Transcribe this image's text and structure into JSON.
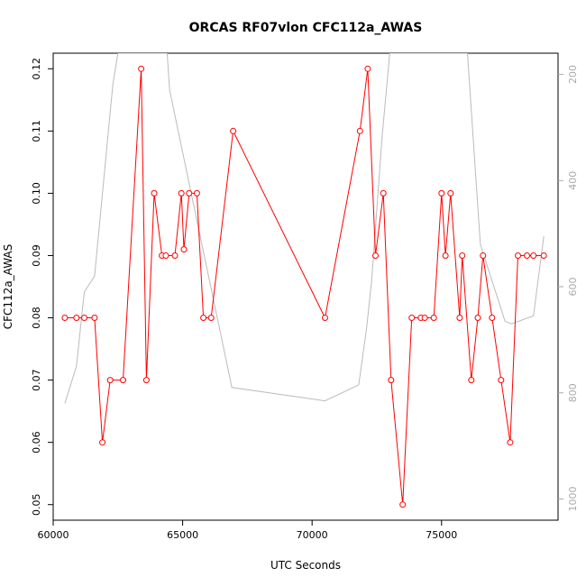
{
  "chart_data": {
    "type": "line",
    "title": "ORCAS RF07vlon CFC112a_AWAS",
    "xlabel": "UTC Seconds",
    "ylabel": "CFC112a_AWAS",
    "xlim": [
      60000,
      79500
    ],
    "ylim": [
      0.0475,
      0.1225
    ],
    "xticks": [
      60000,
      65000,
      70000,
      75000
    ],
    "yticks": [
      0.05,
      0.06,
      0.07,
      0.08,
      0.09,
      0.1,
      0.11,
      0.12
    ],
    "xtick_labels": [
      "60000",
      "65000",
      "70000",
      "75000"
    ],
    "ytick_labels": [
      "0.05",
      "0.06",
      "0.07",
      "0.08",
      "0.09",
      "0.10",
      "0.11",
      "0.12"
    ],
    "right_axis": {
      "ticks": [
        200,
        400,
        600,
        800,
        1000
      ],
      "tick_labels": [
        "200",
        "400",
        "600",
        "800",
        "1000"
      ],
      "ylim": [
        1040,
        160
      ]
    },
    "series": [
      {
        "color": "#ff0000",
        "style": "line+points",
        "x": [
          60450,
          60900,
          61200,
          61600,
          61900,
          62200,
          62700,
          63400,
          63600,
          63900,
          64200,
          64350,
          64700,
          64950,
          65050,
          65250,
          65550,
          65800,
          66100,
          66950,
          70500,
          71850,
          72150,
          72450,
          72750,
          73050,
          73500,
          73850,
          74200,
          74350,
          74700,
          75000,
          75150,
          75350,
          75700,
          75800,
          76150,
          76400,
          76600,
          76950,
          77300,
          77650,
          77950,
          78300,
          78550,
          78950
        ],
        "y": [
          0.08,
          0.08,
          0.08,
          0.08,
          0.06,
          0.07,
          0.07,
          0.12,
          0.07,
          0.1,
          0.09,
          0.09,
          0.09,
          0.1,
          0.091,
          0.1,
          0.1,
          0.08,
          0.08,
          0.11,
          0.08,
          0.11,
          0.12,
          0.09,
          0.1,
          0.07,
          0.05,
          0.08,
          0.08,
          0.08,
          0.08,
          0.1,
          0.09,
          0.1,
          0.08,
          0.09,
          0.07,
          0.08,
          0.09,
          0.08,
          0.07,
          0.06,
          0.09,
          0.09,
          0.09,
          0.09
        ]
      },
      {
        "color": "#bbbbbb",
        "axis": "right",
        "style": "line",
        "x": [
          60450,
          60900,
          61200,
          61600,
          62300,
          62500,
          64400,
          64500,
          66900,
          70500,
          71800,
          72100,
          72300,
          72700,
          73000,
          73100,
          76000,
          76500,
          77450,
          77700,
          78550,
          78950
        ],
        "y": [
          820,
          750,
          610,
          580,
          220,
          160,
          160,
          230,
          790,
          815,
          785,
          680,
          590,
          320,
          160,
          160,
          160,
          520,
          665,
          670,
          655,
          505
        ]
      }
    ]
  }
}
